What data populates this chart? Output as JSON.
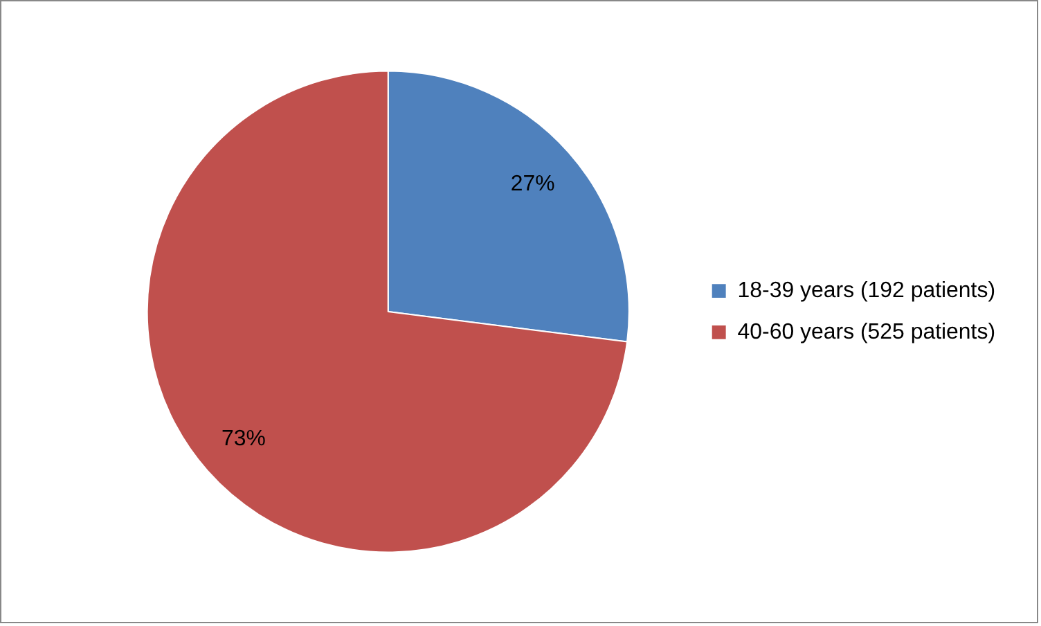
{
  "chart_data": {
    "type": "pie",
    "categories": [
      "18-39 years (192 patients)",
      "40-60 years (525 patients)"
    ],
    "values": [
      27,
      73
    ],
    "colors": [
      "#4f81bd",
      "#c0504d"
    ],
    "value_labels": [
      "27%",
      "73%"
    ],
    "legend": "right"
  }
}
